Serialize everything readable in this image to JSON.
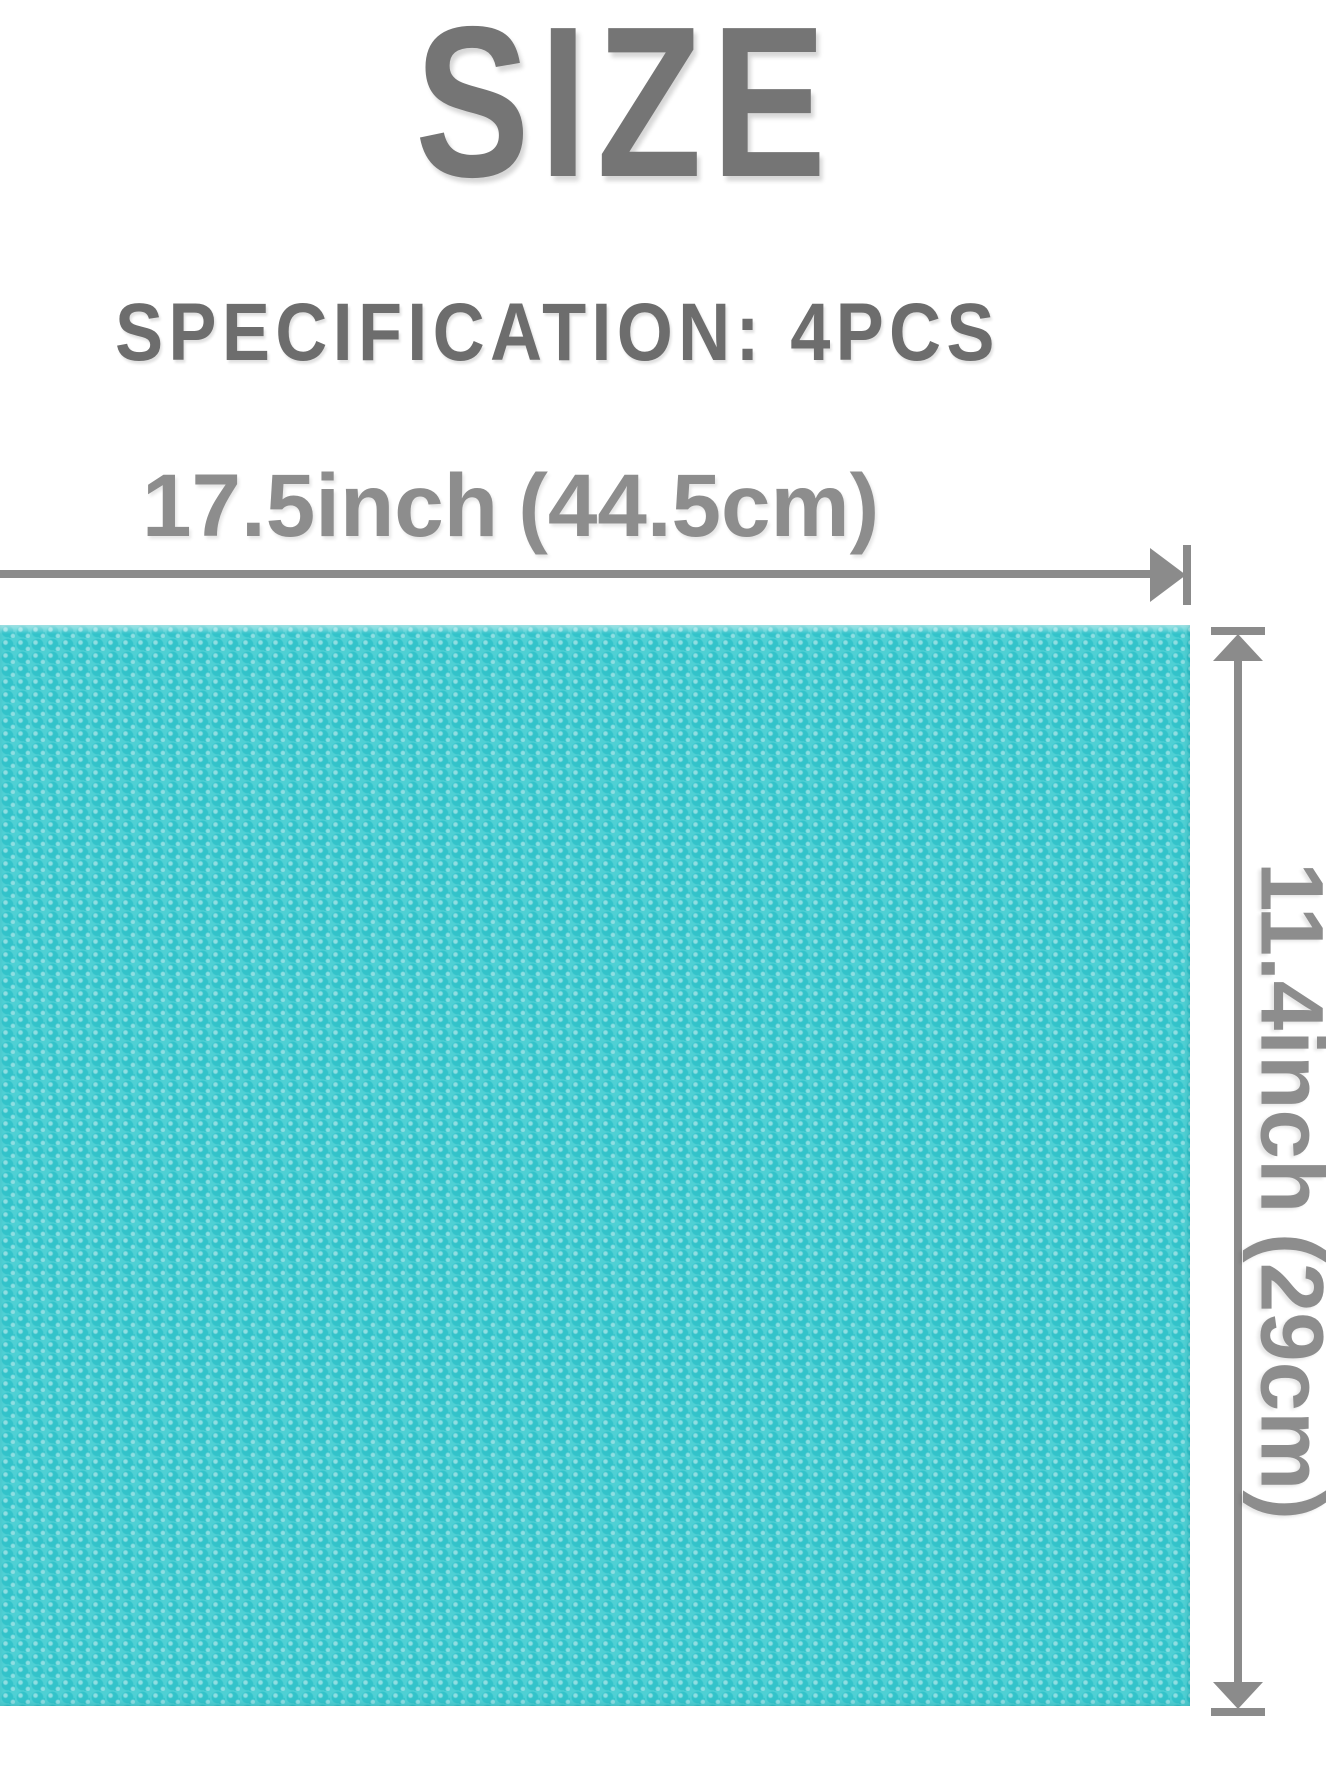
{
  "header": {
    "title": "SIZE",
    "specification": "SPECIFICATION: 4PCS"
  },
  "dimensions": {
    "width": {
      "value": "17.5inch",
      "metric": "(44.5cm)"
    },
    "height": {
      "value": "11.4inch",
      "metric": "(29cm)"
    }
  },
  "product": {
    "pieces": "4PCS",
    "mat_color": "#4fd0d4",
    "mat_dot_color": "#33c3ca"
  },
  "colors": {
    "title_gray": "#757575",
    "spec_gray": "#6d6d6d",
    "dimension_gray": "#8b8b8b",
    "label_gray": "#8d8d8d",
    "background": "#ffffff"
  }
}
